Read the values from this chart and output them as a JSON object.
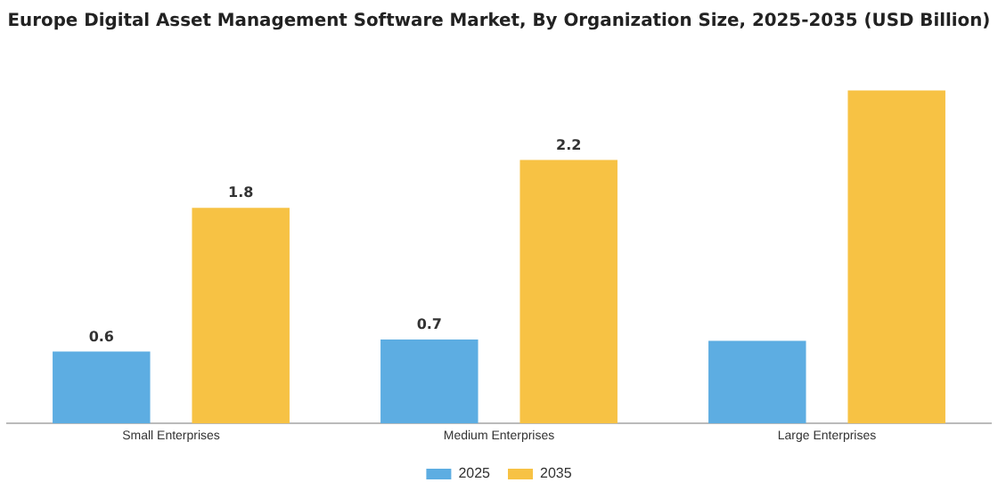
{
  "chart_data": {
    "type": "bar",
    "title": "Europe Digital Asset Management Software Market, By Organization Size, 2025-2035 (USD Billion)",
    "categories": [
      "Small Enterprises",
      "Medium Enterprises",
      "Large Enterprises"
    ],
    "series": [
      {
        "name": "2025",
        "color": "#5dade2",
        "values": [
          0.6,
          0.7,
          0.69
        ],
        "value_labels": [
          "0.6",
          "0.7",
          null
        ]
      },
      {
        "name": "2035",
        "color": "#f7c244",
        "values": [
          1.8,
          2.2,
          2.78
        ],
        "value_labels": [
          "1.8",
          "2.2",
          null
        ]
      }
    ],
    "legend": "bottom",
    "grid": false
  }
}
